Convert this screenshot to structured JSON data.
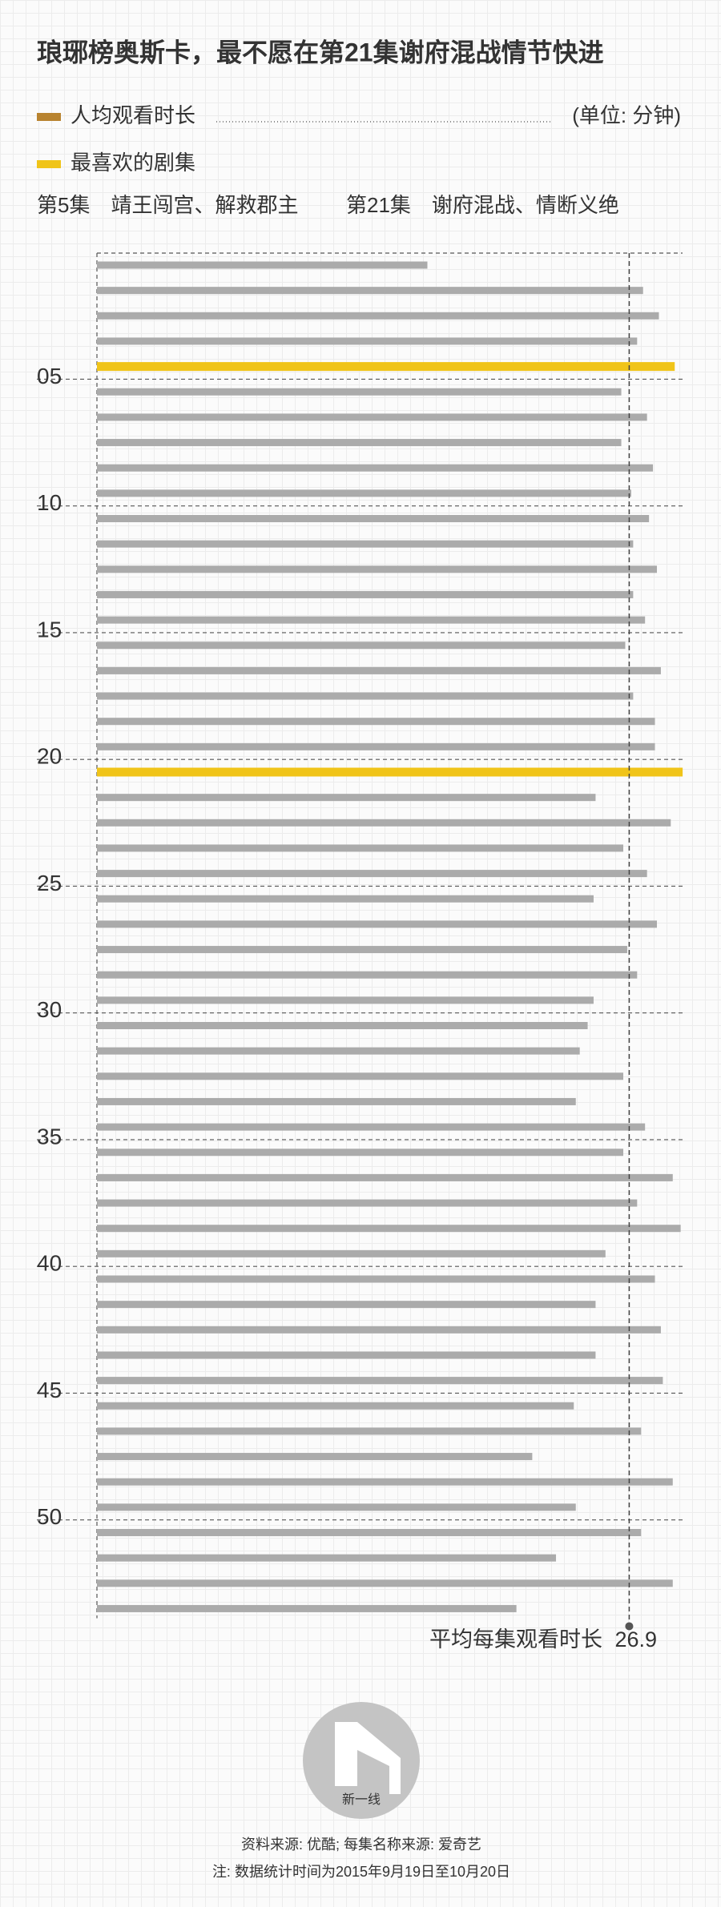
{
  "chart_data": {
    "type": "bar",
    "orientation": "horizontal",
    "title": "琅琊榜奥斯卡，最不愿在第21集谢府混战情节快进",
    "legend": [
      {
        "name": "人均观看时长",
        "color": "#b8832f"
      },
      {
        "name": "最喜欢的剧集",
        "color": "#f0c419"
      }
    ],
    "unit": "(单位: 分钟)",
    "annotations": [
      "第5集　靖王闯宫、解救郡主",
      "第21集　谢府混战、情断义绝"
    ],
    "categories": [
      null,
      null,
      null,
      null,
      "05",
      null,
      null,
      null,
      null,
      "10",
      null,
      null,
      null,
      null,
      "15",
      null,
      null,
      null,
      null,
      "20",
      null,
      null,
      null,
      null,
      "25",
      null,
      null,
      null,
      null,
      "30",
      null,
      null,
      null,
      null,
      "35",
      null,
      null,
      null,
      null,
      "40",
      null,
      null,
      null,
      null,
      "45",
      null,
      null,
      null,
      null,
      "50",
      null,
      null,
      null,
      null
    ],
    "values": [
      16.7,
      27.6,
      28.4,
      27.3,
      29.2,
      26.5,
      27.8,
      26.5,
      28.1,
      27.0,
      27.9,
      27.1,
      28.3,
      27.1,
      27.7,
      26.7,
      28.5,
      27.1,
      28.2,
      28.2,
      29.6,
      25.2,
      29.0,
      26.6,
      27.8,
      25.1,
      28.3,
      26.8,
      27.3,
      25.1,
      24.8,
      24.4,
      26.6,
      24.2,
      27.7,
      26.6,
      29.1,
      27.3,
      29.5,
      25.7,
      28.2,
      25.2,
      28.5,
      25.2,
      28.6,
      24.1,
      27.5,
      22.0,
      29.1,
      24.2,
      27.5,
      23.2,
      29.1,
      21.2
    ],
    "colors": [
      "#ababab",
      "#ababab",
      "#ababab",
      "#ababab",
      "#f0c419",
      "#ababab",
      "#ababab",
      "#ababab",
      "#ababab",
      "#ababab",
      "#ababab",
      "#ababab",
      "#ababab",
      "#ababab",
      "#ababab",
      "#ababab",
      "#ababab",
      "#ababab",
      "#ababab",
      "#ababab",
      "#f0c419",
      "#ababab",
      "#ababab",
      "#ababab",
      "#ababab",
      "#ababab",
      "#ababab",
      "#ababab",
      "#ababab",
      "#ababab",
      "#ababab",
      "#ababab",
      "#ababab",
      "#ababab",
      "#ababab",
      "#ababab",
      "#ababab",
      "#ababab",
      "#ababab",
      "#ababab",
      "#ababab",
      "#ababab",
      "#ababab",
      "#ababab",
      "#ababab",
      "#ababab",
      "#ababab",
      "#ababab",
      "#ababab",
      "#ababab",
      "#ababab",
      "#ababab",
      "#ababab",
      "#ababab"
    ],
    "xlim": [
      0,
      30
    ],
    "average": {
      "label": "平均每集观看时长",
      "value": 26.9
    }
  },
  "logo": "新一线",
  "footer": [
    "资料来源: 优酷; 每集名称来源: 爱奇艺",
    "注: 数据统计时间为2015年9月19日至10月20日"
  ]
}
